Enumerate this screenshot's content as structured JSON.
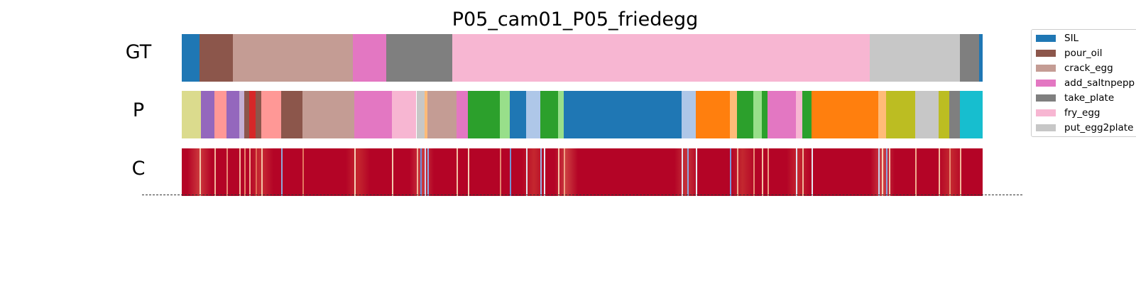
{
  "chart_data": {
    "type": "segmentation",
    "title": "P05_cam01_P05_friedegg",
    "x_range": [
      0,
      100
    ],
    "palette": {
      "SIL": "#1f77b4",
      "pour_oil": "#8c564b",
      "crack_egg": "#c49c94",
      "add_saltnpepper": "#e377c2",
      "take_plate": "#7f7f7f",
      "fry_egg": "#f7b6d2",
      "put_egg2plate": "#c7c7c7",
      "c_orange": "#ff7f0e",
      "c_lightorange": "#ffbb78",
      "c_green": "#2ca02c",
      "c_lightgreen": "#98df8a",
      "c_red": "#d62728",
      "c_lightred": "#ff9896",
      "c_purple": "#9467bd",
      "c_lightpurple": "#c5b0d5",
      "c_lightblue": "#aec7e8",
      "c_olive": "#bcbd22",
      "c_lightolive": "#dbdb8d",
      "c_cyan": "#17becf"
    },
    "legend": [
      {
        "label": "SIL",
        "key": "SIL"
      },
      {
        "label": "pour_oil",
        "key": "pour_oil"
      },
      {
        "label": "crack_egg",
        "key": "crack_egg"
      },
      {
        "label": "add_saltnpepp",
        "key": "add_saltnpepper"
      },
      {
        "label": "take_plate",
        "key": "take_plate"
      },
      {
        "label": "fry_egg",
        "key": "fry_egg"
      },
      {
        "label": "put_egg2plate",
        "key": "put_egg2plate"
      }
    ],
    "rows": [
      {
        "label": "GT",
        "segments": [
          {
            "start": 0.0,
            "end": 2.2,
            "key": "SIL"
          },
          {
            "start": 2.2,
            "end": 6.4,
            "key": "pour_oil"
          },
          {
            "start": 6.4,
            "end": 21.4,
            "key": "crack_egg"
          },
          {
            "start": 21.4,
            "end": 25.5,
            "key": "add_saltnpepper"
          },
          {
            "start": 25.5,
            "end": 33.8,
            "key": "take_plate"
          },
          {
            "start": 33.8,
            "end": 85.9,
            "key": "fry_egg"
          },
          {
            "start": 85.9,
            "end": 97.2,
            "key": "put_egg2plate"
          },
          {
            "start": 97.2,
            "end": 99.6,
            "key": "take_plate"
          },
          {
            "start": 99.6,
            "end": 100.0,
            "key": "SIL"
          }
        ]
      },
      {
        "label": "P",
        "segments": [
          {
            "start": 0.0,
            "end": 2.4,
            "key": "c_lightolive"
          },
          {
            "start": 2.4,
            "end": 4.1,
            "key": "c_purple"
          },
          {
            "start": 4.1,
            "end": 5.6,
            "key": "c_lightred"
          },
          {
            "start": 5.6,
            "end": 7.2,
            "key": "c_purple"
          },
          {
            "start": 7.2,
            "end": 7.8,
            "key": "c_lightpurple"
          },
          {
            "start": 7.8,
            "end": 8.4,
            "key": "pour_oil"
          },
          {
            "start": 8.4,
            "end": 9.2,
            "key": "c_red"
          },
          {
            "start": 9.2,
            "end": 9.9,
            "key": "pour_oil"
          },
          {
            "start": 9.9,
            "end": 12.4,
            "key": "c_lightred"
          },
          {
            "start": 12.4,
            "end": 15.1,
            "key": "pour_oil"
          },
          {
            "start": 15.1,
            "end": 21.5,
            "key": "crack_egg"
          },
          {
            "start": 21.5,
            "end": 26.2,
            "key": "add_saltnpepper"
          },
          {
            "start": 26.2,
            "end": 29.3,
            "key": "fry_egg"
          },
          {
            "start": 29.3,
            "end": 30.3,
            "key": "put_egg2plate"
          },
          {
            "start": 30.3,
            "end": 30.7,
            "key": "c_lightorange"
          },
          {
            "start": 30.7,
            "end": 34.3,
            "key": "crack_egg"
          },
          {
            "start": 34.3,
            "end": 35.7,
            "key": "add_saltnpepper"
          },
          {
            "start": 35.7,
            "end": 39.7,
            "key": "c_green"
          },
          {
            "start": 39.7,
            "end": 41.0,
            "key": "c_lightgreen"
          },
          {
            "start": 41.0,
            "end": 43.0,
            "key": "SIL"
          },
          {
            "start": 43.0,
            "end": 44.8,
            "key": "c_lightblue"
          },
          {
            "start": 44.8,
            "end": 47.0,
            "key": "c_green"
          },
          {
            "start": 47.0,
            "end": 47.7,
            "key": "c_lightgreen"
          },
          {
            "start": 47.7,
            "end": 62.4,
            "key": "SIL"
          },
          {
            "start": 62.4,
            "end": 64.2,
            "key": "c_lightblue"
          },
          {
            "start": 64.2,
            "end": 68.4,
            "key": "c_orange"
          },
          {
            "start": 68.4,
            "end": 69.3,
            "key": "c_lightorange"
          },
          {
            "start": 69.3,
            "end": 71.4,
            "key": "c_green"
          },
          {
            "start": 71.4,
            "end": 72.4,
            "key": "c_lightgreen"
          },
          {
            "start": 72.4,
            "end": 73.1,
            "key": "c_green"
          },
          {
            "start": 73.1,
            "end": 76.7,
            "key": "add_saltnpepper"
          },
          {
            "start": 76.7,
            "end": 77.5,
            "key": "fry_egg"
          },
          {
            "start": 77.5,
            "end": 78.6,
            "key": "c_green"
          },
          {
            "start": 78.6,
            "end": 87.0,
            "key": "c_orange"
          },
          {
            "start": 87.0,
            "end": 87.9,
            "key": "c_lightorange"
          },
          {
            "start": 87.9,
            "end": 91.6,
            "key": "c_olive"
          },
          {
            "start": 91.6,
            "end": 94.5,
            "key": "put_egg2plate"
          },
          {
            "start": 94.5,
            "end": 95.8,
            "key": "c_olive"
          },
          {
            "start": 95.8,
            "end": 97.2,
            "key": "take_plate"
          },
          {
            "start": 97.2,
            "end": 100.0,
            "key": "c_cyan"
          }
        ]
      },
      {
        "label": "C",
        "base_color": "#b40426",
        "lines": [
          {
            "x": 2.2,
            "color": "#f4c6a8"
          },
          {
            "x": 4.1,
            "color": "#f2b49a"
          },
          {
            "x": 5.6,
            "color": "#e78a74"
          },
          {
            "x": 7.2,
            "color": "#f4b89c"
          },
          {
            "x": 7.8,
            "color": "#e8856b"
          },
          {
            "x": 8.4,
            "color": "#f0a98e"
          },
          {
            "x": 9.2,
            "color": "#df6a55"
          },
          {
            "x": 9.9,
            "color": "#f4c3a5"
          },
          {
            "x": 12.4,
            "color": "#8fa8d8"
          },
          {
            "x": 15.1,
            "color": "#e4775f"
          },
          {
            "x": 21.5,
            "color": "#f6d3b8"
          },
          {
            "x": 26.2,
            "color": "#f3c9ad"
          },
          {
            "x": 29.3,
            "color": "#f0b597"
          },
          {
            "x": 29.8,
            "color": "#6e8fd8"
          },
          {
            "x": 30.3,
            "color": "#c9d4ef"
          },
          {
            "x": 30.7,
            "color": "#8fa8e0"
          },
          {
            "x": 34.3,
            "color": "#f2c0a3"
          },
          {
            "x": 35.7,
            "color": "#f4d0b5"
          },
          {
            "x": 39.7,
            "color": "#e3866f"
          },
          {
            "x": 41.0,
            "color": "#7591d4"
          },
          {
            "x": 43.0,
            "color": "#dfe3ee"
          },
          {
            "x": 44.8,
            "color": "#9bb2e2"
          },
          {
            "x": 45.2,
            "color": "#e7eaf3"
          },
          {
            "x": 47.0,
            "color": "#f5c6a6"
          },
          {
            "x": 47.7,
            "color": "#eea185"
          },
          {
            "x": 62.4,
            "color": "#e4e6ef"
          },
          {
            "x": 63.1,
            "color": "#8ca6df"
          },
          {
            "x": 64.2,
            "color": "#e9ecf4"
          },
          {
            "x": 68.4,
            "color": "#7a97dc"
          },
          {
            "x": 69.3,
            "color": "#f0aa90"
          },
          {
            "x": 71.4,
            "color": "#e98d75"
          },
          {
            "x": 72.4,
            "color": "#f3c2a4"
          },
          {
            "x": 73.1,
            "color": "#eb9d83"
          },
          {
            "x": 76.7,
            "color": "#dde1ee"
          },
          {
            "x": 77.5,
            "color": "#f0b698"
          },
          {
            "x": 78.6,
            "color": "#e4e7f1"
          },
          {
            "x": 87.0,
            "color": "#c7d1ec"
          },
          {
            "x": 87.4,
            "color": "#f6d0b4"
          },
          {
            "x": 87.9,
            "color": "#8aa4df"
          },
          {
            "x": 88.3,
            "color": "#f4c5a7"
          },
          {
            "x": 91.6,
            "color": "#f0ac8f"
          },
          {
            "x": 94.5,
            "color": "#f3bc9e"
          },
          {
            "x": 95.8,
            "color": "#e78b71"
          },
          {
            "x": 97.2,
            "color": "#f2b79a"
          }
        ],
        "glows": [
          {
            "x": 2.2,
            "color": "#e0654f"
          },
          {
            "x": 9.9,
            "color": "#d9503f"
          },
          {
            "x": 22.0,
            "color": "#d24436"
          },
          {
            "x": 30.0,
            "color": "#df6a55"
          },
          {
            "x": 44.0,
            "color": "#d24436"
          },
          {
            "x": 48.0,
            "color": "#de6b54"
          },
          {
            "x": 63.0,
            "color": "#d35a4a"
          },
          {
            "x": 70.0,
            "color": "#d04537"
          },
          {
            "x": 77.0,
            "color": "#d34839"
          },
          {
            "x": 87.5,
            "color": "#e47a61"
          },
          {
            "x": 96.0,
            "color": "#d24738"
          }
        ]
      }
    ]
  }
}
